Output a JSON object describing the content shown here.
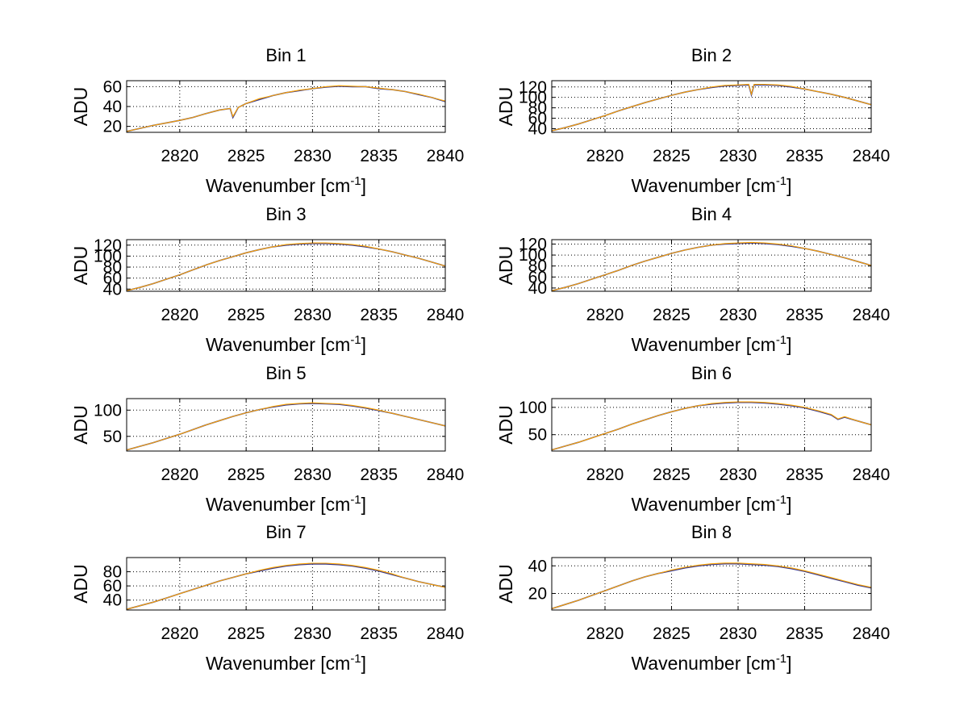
{
  "chart_data": [
    {
      "type": "line",
      "title": "Bin 1",
      "xlabel": "Wavenumber [cm",
      "xlabel_sup": "-1",
      "xlabel_end": "]",
      "ylabel": "ADU",
      "xlim": [
        2816,
        2840
      ],
      "ylim": [
        14,
        66
      ],
      "xticks": [
        2820,
        2825,
        2830,
        2835,
        2840
      ],
      "yticks": [
        20,
        40,
        60
      ],
      "grid": true,
      "series": [
        {
          "color": "#3a3a8c",
          "x": [
            2816,
            2817,
            2818,
            2819,
            2820,
            2821,
            2822,
            2823,
            2823.8,
            2824,
            2824.4,
            2825,
            2826,
            2827,
            2828,
            2829,
            2830,
            2831,
            2832,
            2833,
            2834,
            2835,
            2836,
            2837,
            2838,
            2839,
            2840
          ],
          "y": [
            15,
            18,
            21,
            23.5,
            26,
            29,
            33,
            36.5,
            38,
            29,
            39,
            43,
            47,
            51,
            54,
            56,
            58,
            59.5,
            60.5,
            60,
            60,
            58,
            57,
            55,
            52,
            49,
            45
          ]
        },
        {
          "color": "#ffa500",
          "x": [
            2816,
            2817,
            2818,
            2819,
            2820,
            2821,
            2822,
            2823,
            2823.8,
            2824,
            2824.4,
            2825,
            2826,
            2827,
            2828,
            2829,
            2830,
            2831,
            2832,
            2833,
            2834,
            2835,
            2836,
            2837,
            2838,
            2839,
            2840
          ],
          "y": [
            15,
            18,
            21,
            23.5,
            26,
            29,
            33,
            36.5,
            38,
            30,
            39,
            43,
            48,
            51,
            54,
            56.5,
            58,
            60,
            61,
            60.5,
            60,
            58.5,
            57,
            55,
            52.5,
            49,
            45.5
          ]
        }
      ]
    },
    {
      "type": "line",
      "title": "Bin 2",
      "xlabel": "Wavenumber [cm",
      "xlabel_sup": "-1",
      "xlabel_end": "]",
      "ylabel": "ADU",
      "xlim": [
        2816,
        2840
      ],
      "ylim": [
        33,
        132
      ],
      "xticks": [
        2820,
        2825,
        2830,
        2835,
        2840
      ],
      "yticks": [
        40,
        60,
        80,
        100,
        120
      ],
      "grid": true,
      "series": [
        {
          "color": "#3a3a8c",
          "x": [
            2816,
            2817,
            2818,
            2819,
            2820,
            2821,
            2822,
            2823,
            2824,
            2825,
            2826,
            2827,
            2828,
            2829,
            2830,
            2830.8,
            2831,
            2831.2,
            2832,
            2833,
            2834,
            2835,
            2836,
            2837,
            2838,
            2839,
            2840
          ],
          "y": [
            36,
            42,
            49,
            57,
            65,
            74,
            82,
            90,
            97,
            104,
            110,
            115,
            119,
            122,
            123,
            124,
            105,
            124,
            124,
            123,
            120,
            116,
            111,
            106,
            100,
            93,
            86
          ]
        },
        {
          "color": "#ffa500",
          "x": [
            2816,
            2817,
            2818,
            2819,
            2820,
            2821,
            2822,
            2823,
            2824,
            2825,
            2826,
            2827,
            2828,
            2829,
            2830,
            2830.8,
            2831,
            2831.2,
            2832,
            2833,
            2834,
            2835,
            2836,
            2837,
            2838,
            2839,
            2840
          ],
          "y": [
            36,
            42,
            49,
            57,
            65,
            74,
            82,
            90,
            97,
            104,
            110,
            115,
            120,
            123,
            124,
            125,
            106,
            125,
            125,
            124,
            121,
            116,
            111,
            106,
            100,
            93,
            86
          ]
        }
      ]
    },
    {
      "type": "line",
      "title": "Bin 3",
      "xlabel": "Wavenumber [cm",
      "xlabel_sup": "-1",
      "xlabel_end": "]",
      "ylabel": "ADU",
      "xlim": [
        2816,
        2840
      ],
      "ylim": [
        36,
        130
      ],
      "xticks": [
        2820,
        2825,
        2830,
        2835,
        2840
      ],
      "yticks": [
        40,
        60,
        80,
        100,
        120
      ],
      "grid": true,
      "series": [
        {
          "color": "#3a3a8c",
          "x": [
            2816,
            2817,
            2818,
            2819,
            2820,
            2821,
            2822,
            2823,
            2824,
            2825,
            2826,
            2827,
            2828,
            2829,
            2830,
            2831,
            2832,
            2833,
            2834,
            2835,
            2836,
            2837,
            2838,
            2839,
            2840
          ],
          "y": [
            37,
            43,
            50,
            58,
            66,
            75,
            84,
            92,
            99,
            106,
            112,
            117,
            120,
            122,
            123,
            123,
            122,
            120,
            117,
            113,
            108,
            102,
            96,
            89,
            82
          ]
        },
        {
          "color": "#ffa500",
          "x": [
            2816,
            2817,
            2818,
            2819,
            2820,
            2821,
            2822,
            2823,
            2824,
            2825,
            2826,
            2827,
            2828,
            2829,
            2830,
            2831,
            2832,
            2833,
            2834,
            2835,
            2836,
            2837,
            2838,
            2839,
            2840
          ],
          "y": [
            37,
            43,
            50,
            58,
            66,
            75,
            84,
            92,
            99,
            106,
            112,
            117,
            121,
            123,
            124,
            124,
            123,
            121,
            118,
            113,
            108,
            102,
            96,
            89,
            82
          ]
        }
      ]
    },
    {
      "type": "line",
      "title": "Bin 4",
      "xlabel": "Wavenumber [cm",
      "xlabel_sup": "-1",
      "xlabel_end": "]",
      "ylabel": "ADU",
      "xlim": [
        2816,
        2840
      ],
      "ylim": [
        34,
        128
      ],
      "xticks": [
        2820,
        2825,
        2830,
        2835,
        2840
      ],
      "yticks": [
        40,
        60,
        80,
        100,
        120
      ],
      "grid": true,
      "series": [
        {
          "color": "#3a3a8c",
          "x": [
            2816,
            2817,
            2818,
            2819,
            2820,
            2821,
            2822,
            2823,
            2824,
            2825,
            2826,
            2827,
            2828,
            2829,
            2830,
            2831,
            2832,
            2833,
            2834,
            2835,
            2836,
            2837,
            2838,
            2839,
            2840
          ],
          "y": [
            35,
            41,
            48,
            56,
            64,
            72,
            81,
            89,
            96,
            103,
            109,
            114,
            118,
            120,
            121,
            122,
            121,
            119,
            116,
            112,
            107,
            101,
            95,
            88,
            81
          ]
        },
        {
          "color": "#ffa500",
          "x": [
            2816,
            2817,
            2818,
            2819,
            2820,
            2821,
            2822,
            2823,
            2824,
            2825,
            2826,
            2827,
            2828,
            2829,
            2830,
            2831,
            2832,
            2833,
            2834,
            2835,
            2836,
            2837,
            2838,
            2839,
            2840
          ],
          "y": [
            35,
            41,
            48,
            56,
            64,
            72,
            81,
            89,
            96,
            103,
            109,
            114,
            118,
            121,
            122,
            123,
            122,
            120,
            117,
            112,
            107,
            101,
            95,
            88,
            81
          ]
        }
      ]
    },
    {
      "type": "line",
      "title": "Bin 5",
      "xlabel": "Wavenumber [cm",
      "xlabel_sup": "-1",
      "xlabel_end": "]",
      "ylabel": "ADU",
      "xlim": [
        2816,
        2840
      ],
      "ylim": [
        22,
        122
      ],
      "xticks": [
        2820,
        2825,
        2830,
        2835,
        2840
      ],
      "yticks": [
        50,
        100
      ],
      "grid": true,
      "series": [
        {
          "color": "#3a3a8c",
          "x": [
            2816,
            2817,
            2818,
            2819,
            2820,
            2821,
            2822,
            2823,
            2824,
            2825,
            2826,
            2827,
            2828,
            2829,
            2830,
            2831,
            2832,
            2833,
            2834,
            2835,
            2836,
            2837,
            2838,
            2839,
            2840
          ],
          "y": [
            24,
            31,
            38,
            46,
            54,
            63,
            72,
            80,
            88,
            95,
            101,
            106,
            110,
            112,
            113,
            112,
            111,
            108,
            104,
            99,
            94,
            88,
            82,
            76,
            70
          ]
        },
        {
          "color": "#ffa500",
          "x": [
            2816,
            2817,
            2818,
            2819,
            2820,
            2821,
            2822,
            2823,
            2824,
            2825,
            2826,
            2827,
            2828,
            2829,
            2830,
            2831,
            2832,
            2833,
            2834,
            2835,
            2836,
            2837,
            2838,
            2839,
            2840
          ],
          "y": [
            24,
            31,
            38,
            46,
            54,
            63,
            72,
            80,
            88,
            95,
            101,
            107,
            111,
            113,
            114,
            113,
            112,
            109,
            105,
            100,
            94,
            88,
            82,
            76,
            70
          ]
        }
      ]
    },
    {
      "type": "line",
      "title": "Bin 6",
      "xlabel": "Wavenumber [cm",
      "xlabel_sup": "-1",
      "xlabel_end": "]",
      "ylabel": "ADU",
      "xlim": [
        2816,
        2840
      ],
      "ylim": [
        20,
        116
      ],
      "xticks": [
        2820,
        2825,
        2830,
        2835,
        2840
      ],
      "yticks": [
        50,
        100
      ],
      "grid": true,
      "series": [
        {
          "color": "#3a3a8c",
          "x": [
            2816,
            2817,
            2818,
            2819,
            2820,
            2821,
            2822,
            2823,
            2824,
            2825,
            2826,
            2827,
            2828,
            2829,
            2830,
            2831,
            2832,
            2833,
            2834,
            2835,
            2836,
            2837,
            2837.5,
            2838,
            2839,
            2840
          ],
          "y": [
            22,
            29,
            36,
            44,
            52,
            60,
            69,
            77,
            85,
            92,
            98,
            103,
            106,
            108,
            109,
            109,
            108,
            106,
            103,
            99,
            93,
            86,
            78,
            82,
            75,
            68
          ]
        },
        {
          "color": "#ffa500",
          "x": [
            2816,
            2817,
            2818,
            2819,
            2820,
            2821,
            2822,
            2823,
            2824,
            2825,
            2826,
            2827,
            2828,
            2829,
            2830,
            2831,
            2832,
            2833,
            2834,
            2835,
            2836,
            2837,
            2837.5,
            2838,
            2839,
            2840
          ],
          "y": [
            22,
            29,
            36,
            44,
            52,
            60,
            69,
            77,
            85,
            92,
            98,
            103,
            107,
            109,
            110,
            110,
            109,
            107,
            104,
            100,
            94,
            87,
            79,
            83,
            75,
            68
          ]
        }
      ]
    },
    {
      "type": "line",
      "title": "Bin 7",
      "xlabel": "Wavenumber [cm",
      "xlabel_sup": "-1",
      "xlabel_end": "]",
      "ylabel": "ADU",
      "xlim": [
        2816,
        2840
      ],
      "ylim": [
        26,
        100
      ],
      "xticks": [
        2820,
        2825,
        2830,
        2835,
        2840
      ],
      "yticks": [
        40,
        60,
        80
      ],
      "grid": true,
      "series": [
        {
          "color": "#3a3a8c",
          "x": [
            2816,
            2817,
            2818,
            2819,
            2820,
            2821,
            2822,
            2823,
            2824,
            2825,
            2826,
            2827,
            2828,
            2829,
            2830,
            2831,
            2832,
            2833,
            2834,
            2835,
            2836,
            2837,
            2838,
            2839,
            2840
          ],
          "y": [
            27,
            32,
            37,
            43,
            49,
            55,
            61,
            67,
            72,
            77,
            81,
            85,
            88,
            90,
            91,
            91,
            90,
            88,
            85,
            81,
            76,
            71,
            66,
            62,
            58
          ]
        },
        {
          "color": "#ffa500",
          "x": [
            2816,
            2817,
            2818,
            2819,
            2820,
            2821,
            2822,
            2823,
            2824,
            2825,
            2826,
            2827,
            2828,
            2829,
            2830,
            2831,
            2832,
            2833,
            2834,
            2835,
            2836,
            2837,
            2838,
            2839,
            2840
          ],
          "y": [
            27,
            32,
            37,
            43,
            49,
            55,
            61,
            67,
            72,
            77,
            82,
            86,
            89,
            91,
            92,
            92,
            91,
            89,
            86,
            82,
            77,
            71,
            66,
            62,
            58
          ]
        }
      ]
    },
    {
      "type": "line",
      "title": "Bin 8",
      "xlabel": "Wavenumber [cm",
      "xlabel_sup": "-1",
      "xlabel_end": "]",
      "ylabel": "ADU",
      "xlim": [
        2816,
        2840
      ],
      "ylim": [
        8,
        46
      ],
      "xticks": [
        2820,
        2825,
        2830,
        2835,
        2840
      ],
      "yticks": [
        20,
        40
      ],
      "grid": true,
      "series": [
        {
          "color": "#3a3a8c",
          "x": [
            2816,
            2817,
            2818,
            2819,
            2820,
            2821,
            2822,
            2823,
            2824,
            2825,
            2826,
            2827,
            2828,
            2829,
            2830,
            2831,
            2832,
            2833,
            2834,
            2835,
            2836,
            2837,
            2838,
            2839,
            2840
          ],
          "y": [
            9,
            12,
            15,
            18.5,
            22,
            25.5,
            29,
            32,
            34.5,
            36.5,
            38.5,
            40,
            41,
            41.5,
            41.5,
            41,
            40.5,
            39.5,
            38,
            36,
            33.5,
            31,
            28.5,
            26,
            24
          ]
        },
        {
          "color": "#ffa500",
          "x": [
            2816,
            2817,
            2818,
            2819,
            2820,
            2821,
            2822,
            2823,
            2824,
            2825,
            2826,
            2827,
            2828,
            2829,
            2830,
            2831,
            2832,
            2833,
            2834,
            2835,
            2836,
            2837,
            2838,
            2839,
            2840
          ],
          "y": [
            9,
            12,
            15,
            18.5,
            22,
            25.5,
            29,
            32,
            34.5,
            37,
            39,
            40.5,
            41.5,
            42,
            42,
            41.5,
            41,
            40,
            38.5,
            36.5,
            34,
            31.5,
            29,
            26.5,
            24.5
          ]
        }
      ]
    }
  ]
}
